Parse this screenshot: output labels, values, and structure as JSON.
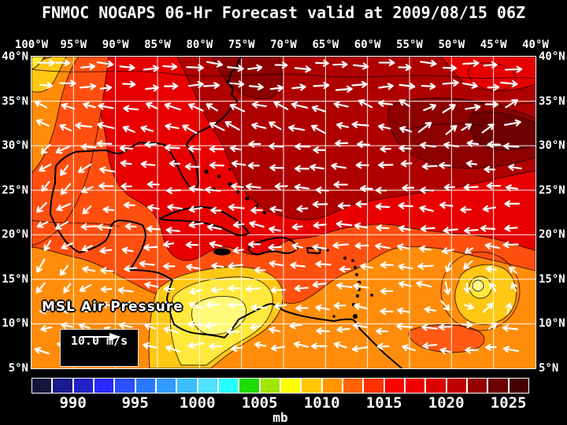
{
  "title": "FNMOC NOGAPS 06-Hr Forecast valid at 2009/08/15 06Z",
  "map": {
    "field_label": "MSL Air Pressure",
    "wind_scale_label": "10.0 m/s",
    "lon_labels": [
      "100°W",
      "95°W",
      "90°W",
      "85°W",
      "80°W",
      "75°W",
      "70°W",
      "65°W",
      "60°W",
      "55°W",
      "50°W",
      "45°W",
      "40°W"
    ],
    "lat_labels": [
      "40°N",
      "35°N",
      "30°N",
      "25°N",
      "20°N",
      "15°N",
      "10°N",
      "5°N"
    ],
    "grid_color": "#ffffff",
    "coastline_color": "#000000",
    "wind_arrow_color": "#ffffff"
  },
  "colorbar": {
    "unit": "mb",
    "tick_labels": [
      "990",
      "995",
      "1000",
      "1005",
      "1010",
      "1015",
      "1020",
      "1025"
    ],
    "segment_colors": [
      "#14143C",
      "#1A1A8C",
      "#2222C8",
      "#2A2AFF",
      "#2A50FF",
      "#2A78FF",
      "#329BFF",
      "#3CBEFF",
      "#50E1FF",
      "#28FFFF",
      "#1EDC00",
      "#A0E600",
      "#FFFF00",
      "#FFC800",
      "#FF9600",
      "#FF6400",
      "#FF3200",
      "#FF0000",
      "#F00000",
      "#DC0000",
      "#BE0000",
      "#960000",
      "#6E0000",
      "#460000"
    ]
  },
  "chart_data": {
    "type": "heatmap",
    "title": "FNMOC NOGAPS 06-Hr Forecast valid at 2009/08/15 06Z",
    "field": "MSL Air Pressure",
    "unit": "mb",
    "colorbar_ticks": [
      990,
      995,
      1000,
      1005,
      1010,
      1015,
      1020,
      1025
    ],
    "lon_ticks_deg_west": [
      100,
      95,
      90,
      85,
      80,
      75,
      70,
      65,
      60,
      55,
      50,
      45,
      40
    ],
    "lat_ticks_deg_north": [
      40,
      35,
      30,
      25,
      20,
      15,
      10,
      5
    ],
    "wind_reference_m_per_s": 10.0,
    "visible_features": [
      {
        "name": "subtropical high (darkest red core)",
        "approx_location": "32N 46W",
        "approx_value_mb": 1024
      },
      {
        "name": "broad high-pressure band (dark red)",
        "approx_location": "28-38N, 80-40W",
        "approx_value_mb": 1020
      },
      {
        "name": "closed tropical low (yellow rings)",
        "approx_location": "15N 46W",
        "approx_value_mb": 1007
      },
      {
        "name": "broad low over Central America (yellow)",
        "approx_location": "8-14N, 75-87W",
        "approx_value_mb": 1007
      },
      {
        "name": "thermal low over Mexican plateau (yellow/orange corner)",
        "approx_location": "38-40N, 99-100W",
        "approx_value_mb": 1008
      },
      {
        "name": "trade-wind easterlies (arrows pointing west)",
        "approx_location": "5-30N"
      },
      {
        "name": "westerlies (arrows pointing east)",
        "approx_location": "35-40N"
      }
    ]
  }
}
